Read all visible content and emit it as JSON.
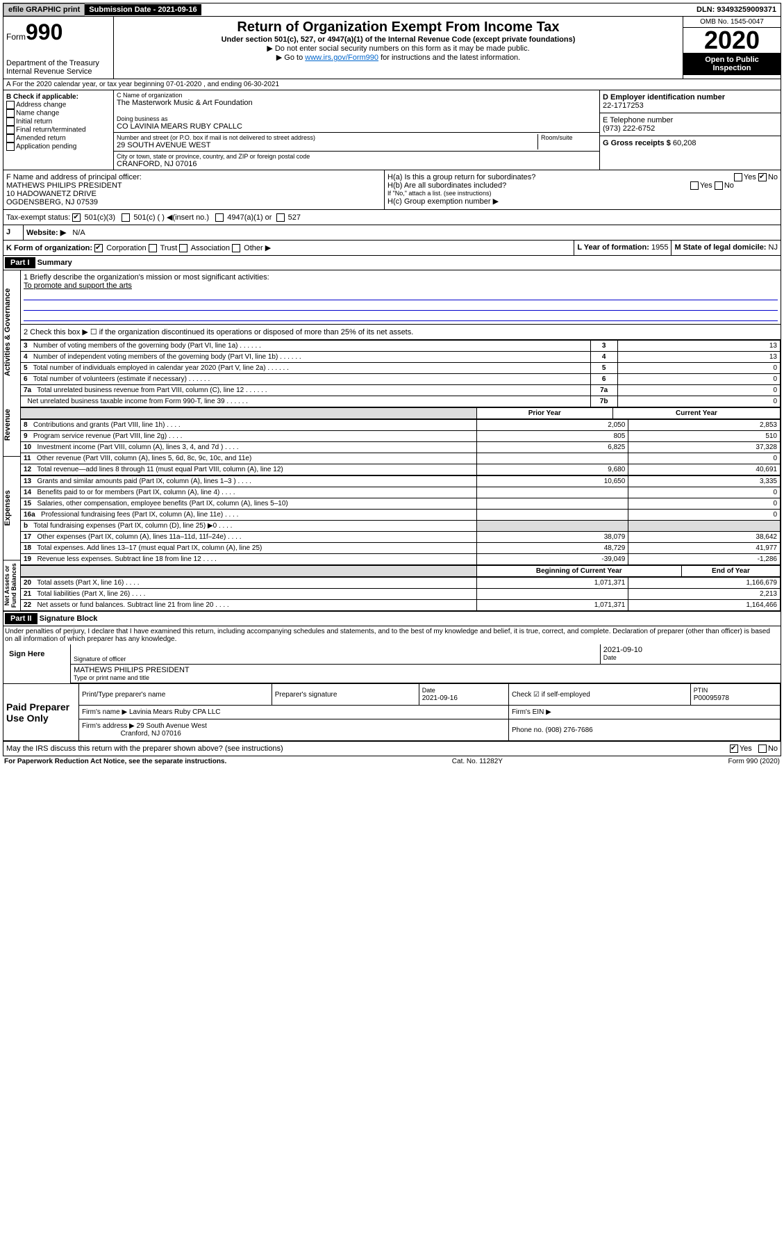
{
  "topbar": {
    "efile": "efile GRAPHIC print",
    "submission_label": "Submission Date - 2021-09-16",
    "dln": "DLN: 93493259009371"
  },
  "header": {
    "form_label": "Form",
    "form_number": "990",
    "dept": "Department of the Treasury",
    "irs": "Internal Revenue Service",
    "title": "Return of Organization Exempt From Income Tax",
    "subtitle": "Under section 501(c), 527, or 4947(a)(1) of the Internal Revenue Code (except private foundations)",
    "note1": "▶ Do not enter social security numbers on this form as it may be made public.",
    "note2_pre": "▶ Go to ",
    "note2_link": "www.irs.gov/Form990",
    "note2_post": " for instructions and the latest information.",
    "omb": "OMB No. 1545-0047",
    "year": "2020",
    "open": "Open to Public Inspection"
  },
  "row_a": "A For the 2020 calendar year, or tax year beginning 07-01-2020    , and ending 06-30-2021",
  "section_b": {
    "b_label": "B Check if applicable:",
    "checks": [
      "Address change",
      "Name change",
      "Initial return",
      "Final return/terminated",
      "Amended return",
      "Application pending"
    ],
    "c_label": "C Name of organization",
    "org_name": "The Masterwork Music & Art Foundation",
    "dba_label": "Doing business as",
    "dba": "CO LAVINIA MEARS RUBY CPALLC",
    "addr_label": "Number and street (or P.O. box if mail is not delivered to street address)",
    "room": "Room/suite",
    "street": "29 SOUTH AVENUE WEST",
    "city_label": "City or town, state or province, country, and ZIP or foreign postal code",
    "city": "CRANFORD, NJ  07016",
    "d_label": "D Employer identification number",
    "ein": "22-1717253",
    "e_label": "E Telephone number",
    "phone": "(973) 222-6752",
    "g_label": "G Gross receipts $",
    "gross": "60,208"
  },
  "row_f": {
    "f_label": "F Name and address of principal officer:",
    "name": "MATHEWS PHILIPS PRESIDENT",
    "addr1": "10 HADOWANETZ DRIVE",
    "addr2": "OGDENSBERG, NJ  07539",
    "ha": "H(a)  Is this a group return for subordinates?",
    "ha_no": "No",
    "hb": "H(b)  Are all subordinates included?",
    "hb_note": "If \"No,\" attach a list. (see instructions)",
    "hc": "H(c)  Group exemption number ▶"
  },
  "row_i": {
    "label": "Tax-exempt status:",
    "c3": "501(c)(3)",
    "c": "501(c) (  ) ◀(insert no.)",
    "a1": "4947(a)(1) or",
    "s527": "527"
  },
  "row_j": {
    "j": "J",
    "website": "Website: ▶",
    "na": "N/A"
  },
  "row_k": {
    "k_label": "K Form of organization:",
    "corp": "Corporation",
    "trust": "Trust",
    "assoc": "Association",
    "other": "Other ▶",
    "l_label": "L Year of formation:",
    "year": "1955",
    "m_label": "M State of legal domicile:",
    "state": "NJ"
  },
  "part1": {
    "header": "Part I",
    "title": "Summary",
    "vlabel1": "Activities & Governance",
    "vlabel2": "Revenue",
    "vlabel3": "Expenses",
    "vlabel4": "Net Assets or Fund Balances",
    "q1": "1  Briefly describe the organization's mission or most significant activities:",
    "mission": "To promote and support the arts",
    "q2": "2   Check this box ▶ ☐  if the organization discontinued its operations or disposed of more than 25% of its net assets.",
    "rows_gov": [
      {
        "n": "3",
        "text": "Number of voting members of the governing body (Part VI, line 1a)",
        "label": "3",
        "val": "13"
      },
      {
        "n": "4",
        "text": "Number of independent voting members of the governing body (Part VI, line 1b)",
        "label": "4",
        "val": "13"
      },
      {
        "n": "5",
        "text": "Total number of individuals employed in calendar year 2020 (Part V, line 2a)",
        "label": "5",
        "val": "0"
      },
      {
        "n": "6",
        "text": "Total number of volunteers (estimate if necessary)",
        "label": "6",
        "val": "0"
      },
      {
        "n": "7a",
        "text": "Total unrelated business revenue from Part VIII, column (C), line 12",
        "label": "7a",
        "val": "0"
      },
      {
        "n": "",
        "text": "Net unrelated business taxable income from Form 990-T, line 39",
        "label": "7b",
        "val": "0"
      }
    ],
    "col_prior": "Prior Year",
    "col_current": "Current Year",
    "rows_rev": [
      {
        "n": "8",
        "text": "Contributions and grants (Part VIII, line 1h)",
        "prior": "2,050",
        "curr": "2,853"
      },
      {
        "n": "9",
        "text": "Program service revenue (Part VIII, line 2g)",
        "prior": "805",
        "curr": "510"
      },
      {
        "n": "10",
        "text": "Investment income (Part VIII, column (A), lines 3, 4, and 7d )",
        "prior": "6,825",
        "curr": "37,328"
      },
      {
        "n": "11",
        "text": "Other revenue (Part VIII, column (A), lines 5, 6d, 8c, 9c, 10c, and 11e)",
        "prior": "",
        "curr": "0"
      },
      {
        "n": "12",
        "text": "Total revenue—add lines 8 through 11 (must equal Part VIII, column (A), line 12)",
        "prior": "9,680",
        "curr": "40,691"
      }
    ],
    "rows_exp": [
      {
        "n": "13",
        "text": "Grants and similar amounts paid (Part IX, column (A), lines 1–3 )",
        "prior": "10,650",
        "curr": "3,335"
      },
      {
        "n": "14",
        "text": "Benefits paid to or for members (Part IX, column (A), line 4)",
        "prior": "",
        "curr": "0"
      },
      {
        "n": "15",
        "text": "Salaries, other compensation, employee benefits (Part IX, column (A), lines 5–10)",
        "prior": "",
        "curr": "0"
      },
      {
        "n": "16a",
        "text": "Professional fundraising fees (Part IX, column (A), line 11e)",
        "prior": "",
        "curr": "0"
      },
      {
        "n": "b",
        "text": "Total fundraising expenses (Part IX, column (D), line 25) ▶0",
        "prior": "shade",
        "curr": "shade"
      },
      {
        "n": "17",
        "text": "Other expenses (Part IX, column (A), lines 11a–11d, 11f–24e)",
        "prior": "38,079",
        "curr": "38,642"
      },
      {
        "n": "18",
        "text": "Total expenses. Add lines 13–17 (must equal Part IX, column (A), line 25)",
        "prior": "48,729",
        "curr": "41,977"
      },
      {
        "n": "19",
        "text": "Revenue less expenses. Subtract line 18 from line 12",
        "prior": "-39,049",
        "curr": "-1,286"
      }
    ],
    "col_begin": "Beginning of Current Year",
    "col_end": "End of Year",
    "rows_net": [
      {
        "n": "20",
        "text": "Total assets (Part X, line 16)",
        "prior": "1,071,371",
        "curr": "1,166,679"
      },
      {
        "n": "21",
        "text": "Total liabilities (Part X, line 26)",
        "prior": "",
        "curr": "2,213"
      },
      {
        "n": "22",
        "text": "Net assets or fund balances. Subtract line 21 from line 20",
        "prior": "1,071,371",
        "curr": "1,164,466"
      }
    ]
  },
  "part2": {
    "header": "Part II",
    "title": "Signature Block",
    "perjury": "Under penalties of perjury, I declare that I have examined this return, including accompanying schedules and statements, and to the best of my knowledge and belief, it is true, correct, and complete. Declaration of preparer (other than officer) is based on all information of which preparer has any knowledge.",
    "sign_here": "Sign Here",
    "sig_officer": "Signature of officer",
    "sig_date": "2021-09-10",
    "date_label": "Date",
    "sig_name": "MATHEWS PHILIPS  PRESIDENT",
    "sig_name_label": "Type or print name and title",
    "paid": "Paid Preparer Use Only",
    "prep_name_label": "Print/Type preparer's name",
    "prep_sig_label": "Preparer's signature",
    "prep_date_label": "Date",
    "prep_date": "2021-09-16",
    "check_self": "Check ☑ if self-employed",
    "ptin_label": "PTIN",
    "ptin": "P00095978",
    "firm_name_label": "Firm's name      ▶",
    "firm_name": "Lavinia Mears Ruby CPA LLC",
    "firm_ein_label": "Firm's EIN ▶",
    "firm_addr_label": "Firm's address ▶",
    "firm_addr": "29 South Avenue West",
    "firm_city": "Cranford, NJ  07016",
    "firm_phone_label": "Phone no.",
    "firm_phone": "(908) 276-7686",
    "discuss": "May the IRS discuss this return with the preparer shown above? (see instructions)",
    "yes": "Yes",
    "no": "No"
  },
  "footer": {
    "paperwork": "For Paperwork Reduction Act Notice, see the separate instructions.",
    "cat": "Cat. No. 11282Y",
    "form": "Form 990 (2020)"
  }
}
